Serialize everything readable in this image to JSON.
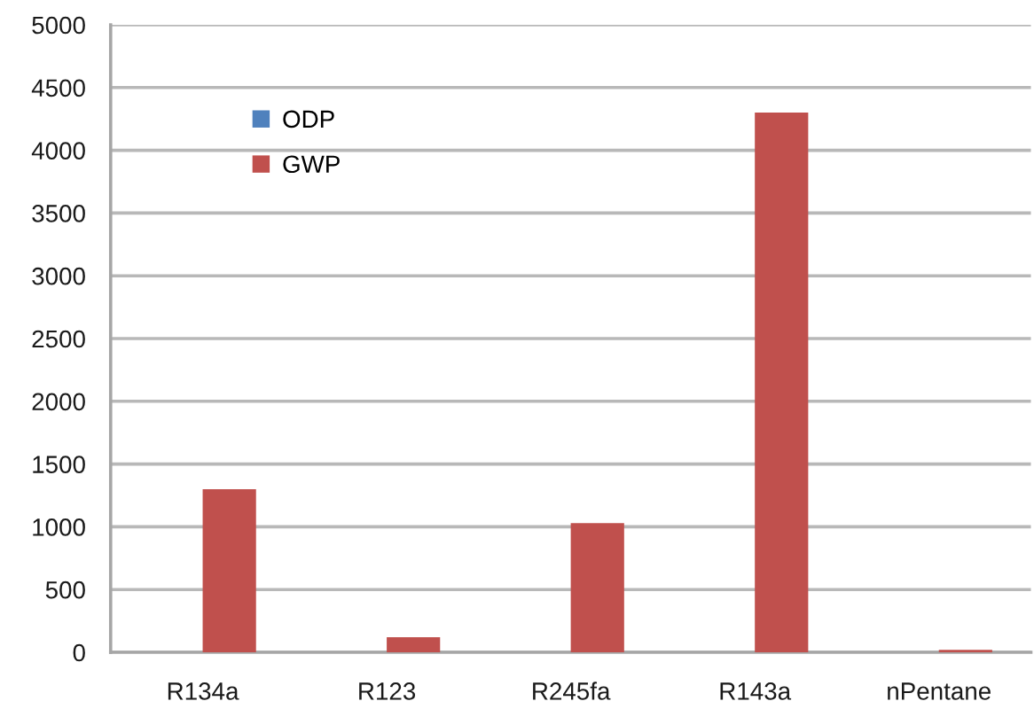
{
  "chart_data": {
    "type": "bar",
    "categories": [
      "R134a",
      "R123",
      "R245fa",
      "R143a",
      "nPentane"
    ],
    "series": [
      {
        "name": "ODP",
        "color": "#4f81bd",
        "values": [
          0,
          0,
          0,
          0,
          0
        ]
      },
      {
        "name": "GWP",
        "color": "#c0504d",
        "values": [
          1300,
          120,
          1030,
          4300,
          20
        ]
      }
    ],
    "ylim": [
      0,
      5000
    ],
    "yticks": [
      0,
      500,
      1000,
      1500,
      2000,
      2500,
      3000,
      3500,
      4000,
      4500,
      5000
    ],
    "grid": "y",
    "legend": "top left"
  }
}
